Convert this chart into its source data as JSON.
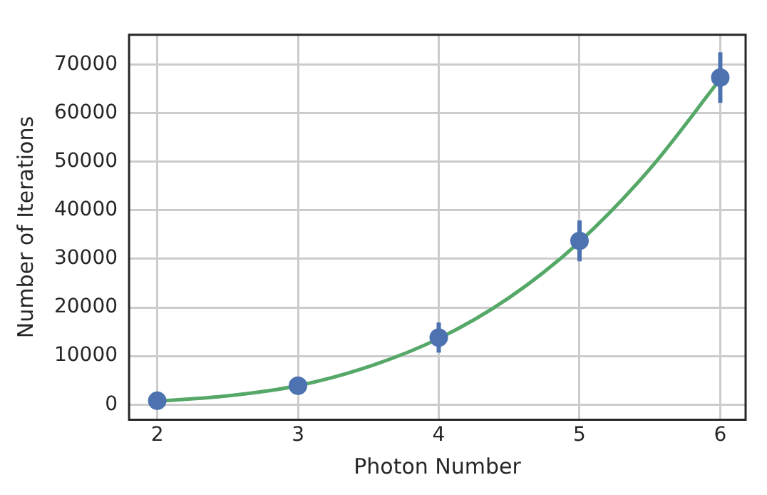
{
  "chart_data": {
    "type": "scatter",
    "xlabel": "Photon Number",
    "ylabel": "Number of Iterations",
    "x": [
      2,
      3,
      4,
      5,
      6
    ],
    "series": [
      {
        "color": "#4c72b0",
        "marker": "circle",
        "values": [
          800,
          3900,
          13800,
          33700,
          67300
        ],
        "errors": [
          null,
          null,
          3100,
          4200,
          5200
        ]
      },
      {
        "type": "line",
        "marker": "none",
        "color": "#55a868",
        "x": [
          2,
          2.5,
          3,
          3.5,
          4,
          4.5,
          5,
          5.5,
          6
        ],
        "values": [
          700,
          1800,
          3900,
          7800,
          13600,
          22000,
          33500,
          48500,
          67000
        ]
      }
    ],
    "xlim": [
      1.8,
      6.18
    ],
    "xticks": [
      2,
      3,
      4,
      5,
      6
    ],
    "ylim": [
      -3100,
      76100
    ],
    "yticks": [
      0,
      10000,
      20000,
      30000,
      40000,
      50000,
      60000,
      70000
    ],
    "grid": true,
    "line_style": "solid"
  }
}
